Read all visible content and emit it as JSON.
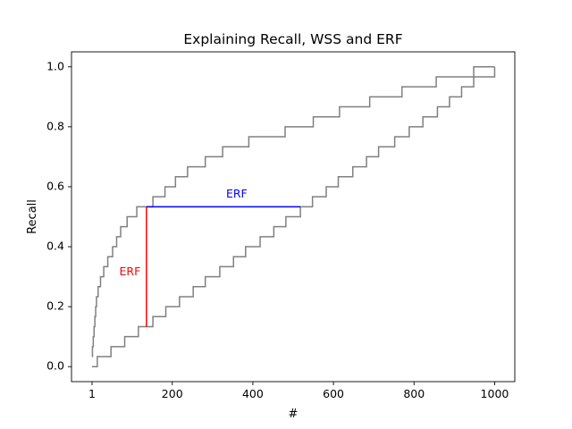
{
  "chart_data": {
    "type": "line",
    "title": "Explaining Recall, WSS and ERF",
    "xlabel": "#",
    "ylabel": "Recall",
    "xlim": [
      -50,
      1050
    ],
    "ylim": [
      -0.05,
      1.05
    ],
    "xticks": [
      1,
      200,
      400,
      600,
      800,
      1000
    ],
    "yticks": [
      0.0,
      0.2,
      0.4,
      0.6,
      0.8,
      1.0
    ],
    "ytick_labels": [
      "0.0",
      "0.2",
      "0.4",
      "0.6",
      "0.8",
      "1.0"
    ],
    "grid": false,
    "series": [
      {
        "color": "#808080",
        "step": "post",
        "x": [
          1,
          2,
          4,
          6,
          8,
          10,
          12,
          16,
          22,
          30,
          40,
          52,
          62,
          72,
          88,
          112,
          136,
          152,
          182,
          208,
          238,
          282,
          325,
          390,
          480,
          550,
          615,
          690,
          770,
          855,
          948,
          1000
        ],
        "y": [
          0.0333,
          0.0667,
          0.1,
          0.1333,
          0.1667,
          0.2,
          0.2333,
          0.2667,
          0.3,
          0.3333,
          0.3667,
          0.4,
          0.4333,
          0.4667,
          0.5,
          0.5333,
          0.5333,
          0.5667,
          0.6,
          0.6333,
          0.6667,
          0.7,
          0.7333,
          0.7667,
          0.8,
          0.8333,
          0.8667,
          0.9,
          0.9333,
          0.9667,
          1.0,
          1.0
        ]
      },
      {
        "color": "#808080",
        "step": "post",
        "x": [
          1,
          14,
          48,
          82,
          116,
          152,
          184,
          218,
          252,
          282,
          318,
          352,
          382,
          418,
          452,
          482,
          518,
          548,
          582,
          612,
          648,
          682,
          712,
          752,
          788,
          822,
          858,
          888,
          918,
          948,
          1000
        ],
        "y": [
          0.0,
          0.0333,
          0.0667,
          0.1,
          0.1333,
          0.1667,
          0.2,
          0.2333,
          0.2667,
          0.3,
          0.3333,
          0.3667,
          0.4,
          0.4333,
          0.4667,
          0.5,
          0.5333,
          0.5667,
          0.6,
          0.6333,
          0.6667,
          0.7,
          0.7333,
          0.7667,
          0.8,
          0.8333,
          0.8667,
          0.9,
          0.9333,
          0.9667,
          1.0
        ]
      }
    ],
    "annotations": [
      {
        "text": "ERF",
        "color": "#ff0000",
        "orientation": "vertical",
        "x": 136,
        "y_from": 0.1333,
        "y_to": 0.5333,
        "label_x": 95,
        "label_y": 0.315
      },
      {
        "text": "ERF",
        "color": "#0000ff",
        "orientation": "horizontal",
        "y": 0.5333,
        "x_from": 136,
        "x_to": 518,
        "label_x": 360,
        "label_y": 0.575
      }
    ]
  }
}
